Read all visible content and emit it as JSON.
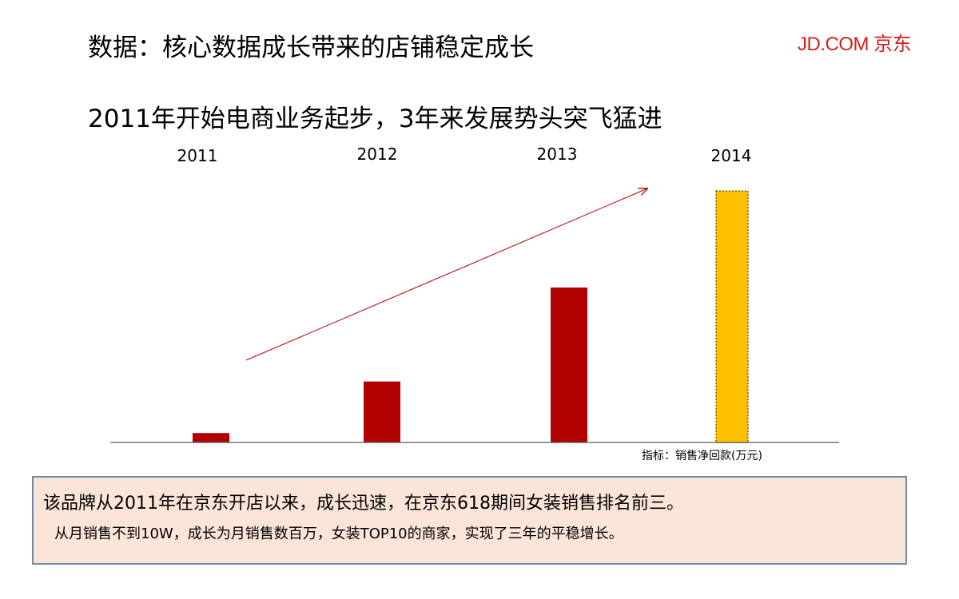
{
  "title": "数据：核心数据成长带来的店铺稳定成长",
  "logo": "JD.COM 京东",
  "subtitle": "2011年开始电商业务起步，3年来发展势头突飞猛进",
  "metric_label": "指标：销售净回款(万元)",
  "note": {
    "line1": "该品牌从2011年在京东开店以来，成长迅速，在京东618期间女装销售排名前三。",
    "line2": "从月销售不到10W，成长为月销售数百万，女装TOP10的商家，实现了三年的平稳增长。"
  },
  "colors": {
    "bar": "#b00000",
    "highlight_bar": "#ffc000",
    "highlight_border": "#7f6000",
    "arrow": "#b00000",
    "axis": "#595959"
  },
  "chart_data": {
    "type": "bar",
    "categories": [
      "2011",
      "2012",
      "2013",
      "2014"
    ],
    "values": [
      3.7,
      24,
      61,
      99
    ],
    "highlight_index": 3,
    "highlight_style": "dashed-border",
    "trend_arrow": true,
    "ylim": [
      0,
      100
    ],
    "grid": false,
    "xlabel": "",
    "ylabel": "",
    "legend": "none"
  }
}
